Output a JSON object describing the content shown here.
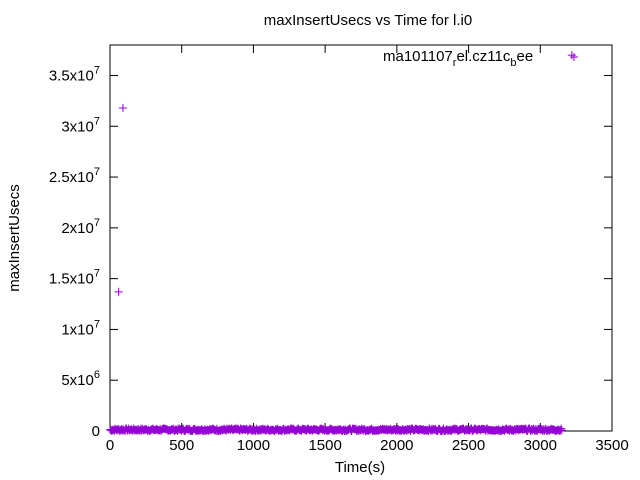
{
  "chart_data": {
    "type": "scatter",
    "title": "maxInsertUsecs vs Time for l.i0",
    "xlabel": "Time(s)",
    "ylabel": "maxInsertUsecs",
    "xlim": [
      0,
      3500
    ],
    "ylim": [
      0,
      38000000
    ],
    "x_ticks": [
      {
        "value": 0,
        "label": "0"
      },
      {
        "value": 500,
        "label": "500"
      },
      {
        "value": 1000,
        "label": "1000"
      },
      {
        "value": 1500,
        "label": "1500"
      },
      {
        "value": 2000,
        "label": "2000"
      },
      {
        "value": 2500,
        "label": "2500"
      },
      {
        "value": 3000,
        "label": "3000"
      },
      {
        "value": 3500,
        "label": "3500"
      }
    ],
    "y_ticks": [
      {
        "value": 0,
        "base": "0",
        "exp": ""
      },
      {
        "value": 5000000,
        "base": "5x10",
        "exp": "6"
      },
      {
        "value": 10000000,
        "base": "1x10",
        "exp": "7"
      },
      {
        "value": 15000000,
        "base": "1.5x10",
        "exp": "7"
      },
      {
        "value": 20000000,
        "base": "2x10",
        "exp": "7"
      },
      {
        "value": 25000000,
        "base": "2.5x10",
        "exp": "7"
      },
      {
        "value": 30000000,
        "base": "3x10",
        "exp": "7"
      },
      {
        "value": 35000000,
        "base": "3.5x10",
        "exp": "7"
      }
    ],
    "legend": {
      "position": "top-right",
      "parts": [
        {
          "text": "ma101107",
          "sub": false
        },
        {
          "text": "r",
          "sub": true
        },
        {
          "text": "el.cz11c",
          "sub": false
        },
        {
          "text": "b",
          "sub": true
        },
        {
          "text": "ee",
          "sub": false
        }
      ],
      "marker": "+"
    },
    "grid": false,
    "series": [
      {
        "color": "#9400d3",
        "marker": "+",
        "outliers": [
          {
            "x": 60,
            "y": 13700000
          },
          {
            "x": 90,
            "y": 31800000
          },
          {
            "x": 3220,
            "y": 37000000
          }
        ],
        "dense_band": {
          "x_start": 0,
          "x_end": 3150,
          "y_min": 0,
          "y_max": 250000,
          "step": 5
        }
      }
    ]
  }
}
